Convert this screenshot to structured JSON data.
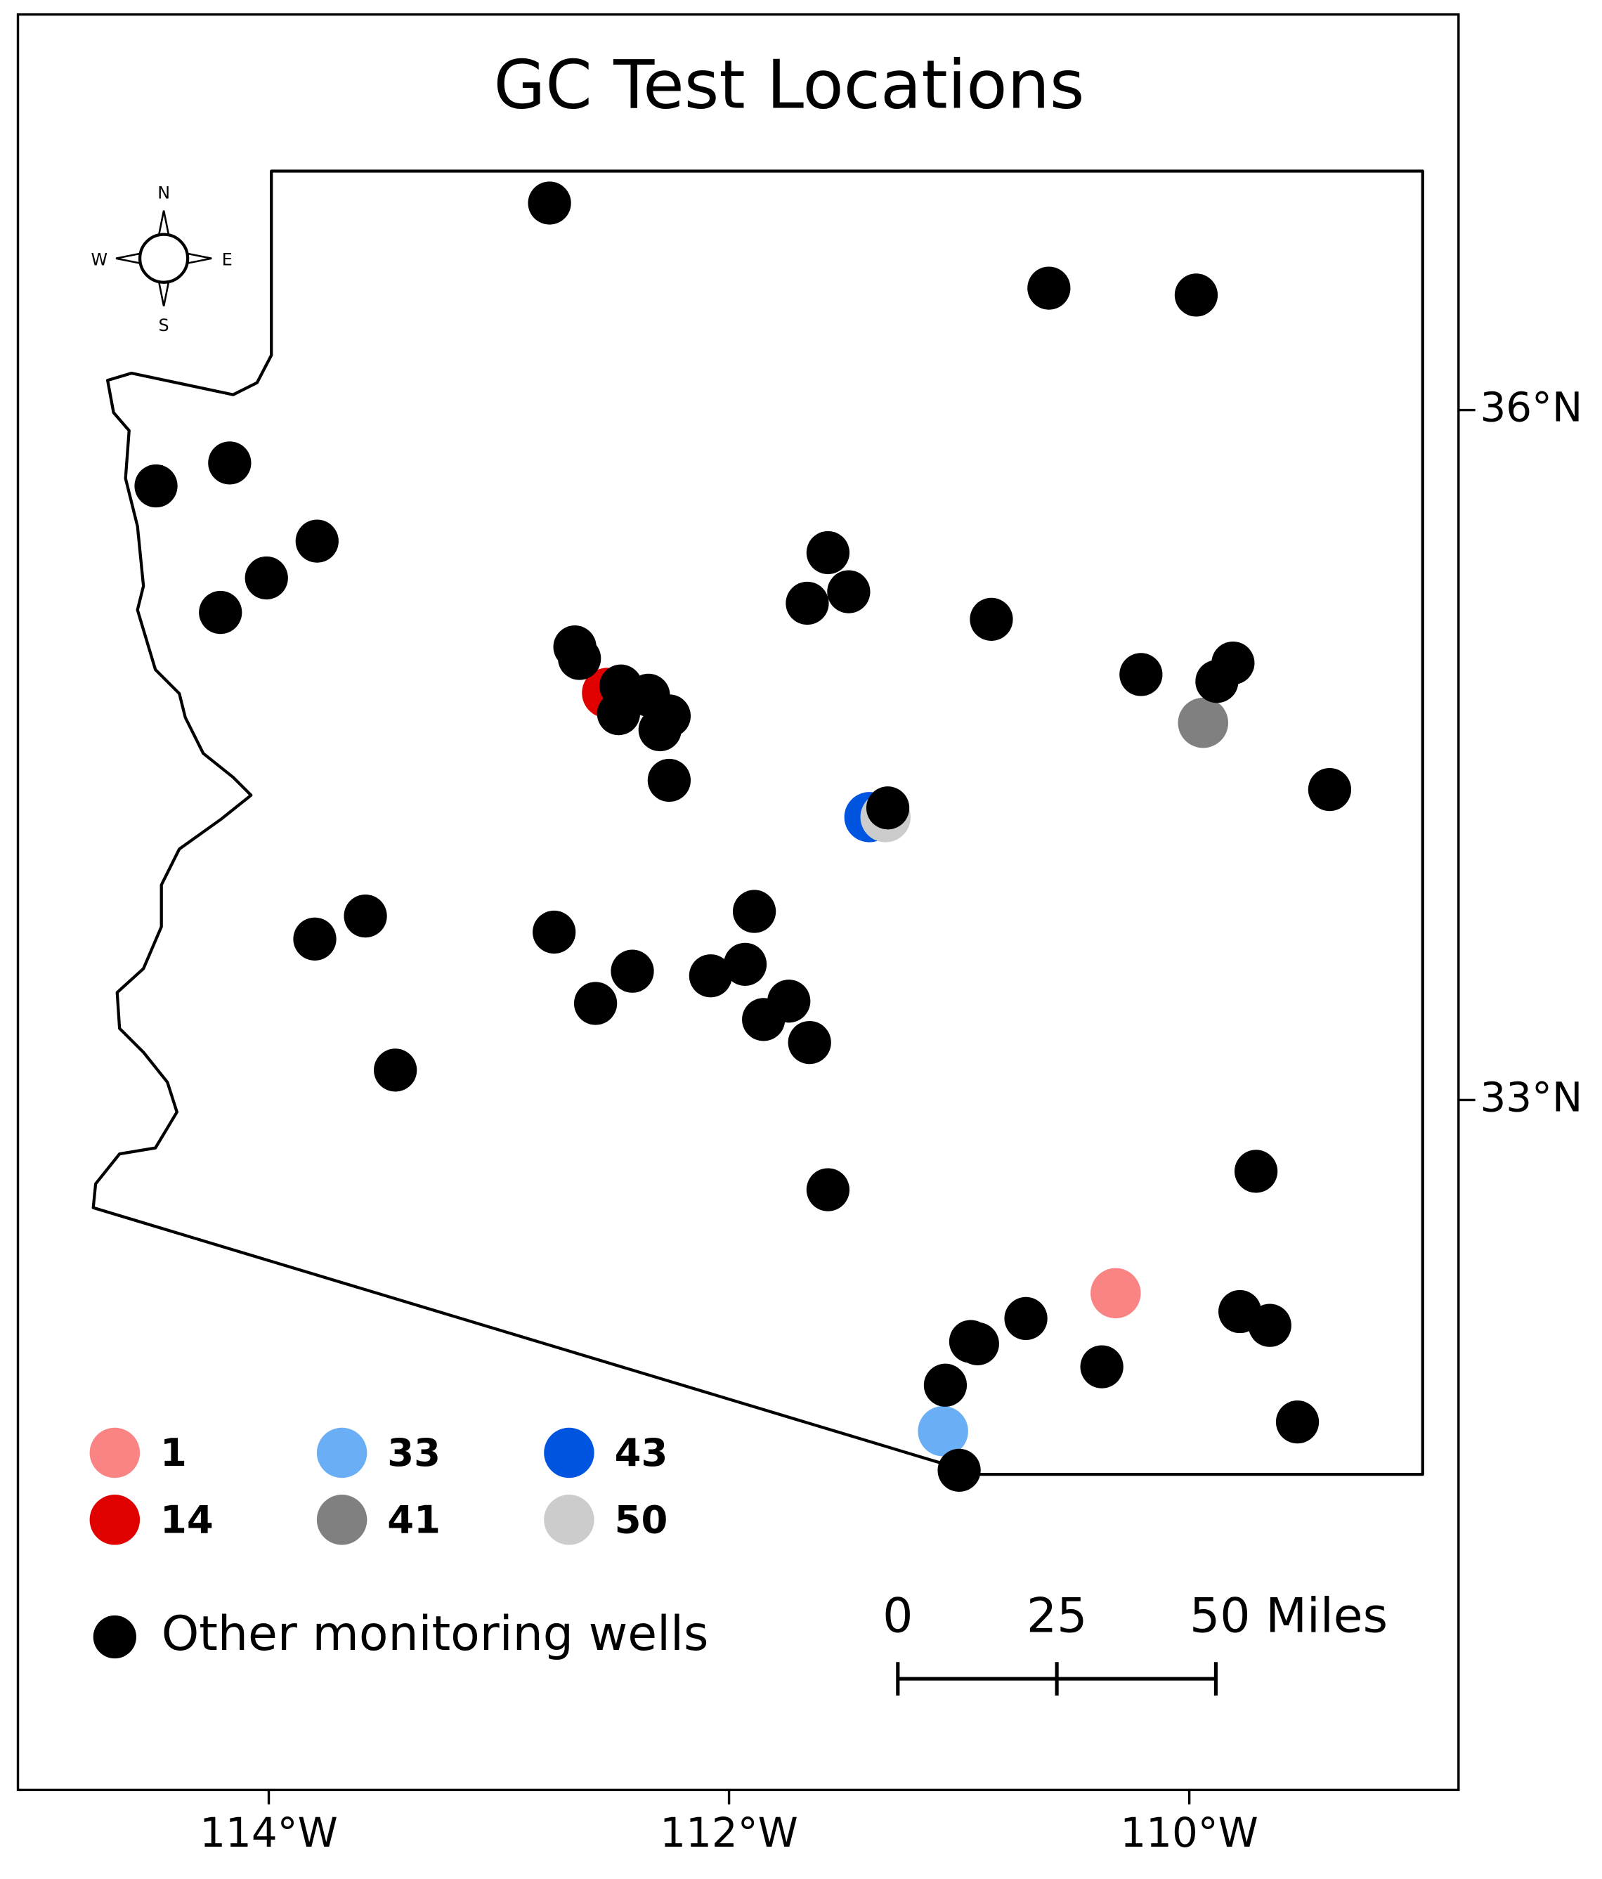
{
  "map": {
    "title": "GC Test Locations",
    "xlim": [
      -115.09,
      -108.83
    ],
    "ylim": [
      30.0,
      37.72
    ],
    "xticks": [
      {
        "value": -114,
        "label": "114°W"
      },
      {
        "value": -112,
        "label": "112°W"
      },
      {
        "value": -110,
        "label": "110°W"
      }
    ],
    "yticks": [
      {
        "value": 36,
        "label": "36°N"
      },
      {
        "value": 33,
        "label": "33°N"
      }
    ],
    "compass": [
      "N",
      "E",
      "S",
      "W"
    ],
    "tests": [
      {
        "name": "1",
        "color": "#fa8484",
        "lon": -110.32,
        "lat": 32.16
      },
      {
        "name": "14",
        "color": "#e00000",
        "lon": -112.53,
        "lat": 34.77
      },
      {
        "name": "33",
        "color": "#6aaff5",
        "lon": -111.07,
        "lat": 31.56
      },
      {
        "name": "41",
        "color": "#808080",
        "lon": -109.94,
        "lat": 34.64
      },
      {
        "name": "43",
        "color": "#0055e0",
        "lon": -111.39,
        "lat": 34.23
      },
      {
        "name": "50",
        "color": "#cccccc",
        "lon": -111.32,
        "lat": 34.23
      }
    ],
    "wells_name": "Other monitoring wells",
    "wells_color": "#000000",
    "wells": [
      {
        "lon": -112.78,
        "lat": 36.9
      },
      {
        "lon": -110.61,
        "lat": 36.53
      },
      {
        "lon": -109.97,
        "lat": 36.5
      },
      {
        "lon": -114.49,
        "lat": 35.67
      },
      {
        "lon": -114.17,
        "lat": 35.77
      },
      {
        "lon": -113.79,
        "lat": 35.43
      },
      {
        "lon": -114.01,
        "lat": 35.27
      },
      {
        "lon": -114.21,
        "lat": 35.12
      },
      {
        "lon": -111.57,
        "lat": 35.38
      },
      {
        "lon": -111.48,
        "lat": 35.21
      },
      {
        "lon": -111.66,
        "lat": 35.16
      },
      {
        "lon": -110.86,
        "lat": 35.09
      },
      {
        "lon": -112.67,
        "lat": 34.97
      },
      {
        "lon": -112.65,
        "lat": 34.92
      },
      {
        "lon": -112.47,
        "lat": 34.8
      },
      {
        "lon": -112.35,
        "lat": 34.76
      },
      {
        "lon": -112.48,
        "lat": 34.68
      },
      {
        "lon": -112.26,
        "lat": 34.67
      },
      {
        "lon": -112.3,
        "lat": 34.61
      },
      {
        "lon": -112.26,
        "lat": 34.39
      },
      {
        "lon": -110.21,
        "lat": 34.85
      },
      {
        "lon": -109.81,
        "lat": 34.9
      },
      {
        "lon": -109.88,
        "lat": 34.82
      },
      {
        "lon": -109.39,
        "lat": 34.35
      },
      {
        "lon": -111.31,
        "lat": 34.27
      },
      {
        "lon": -113.8,
        "lat": 33.7
      },
      {
        "lon": -113.58,
        "lat": 33.8
      },
      {
        "lon": -112.76,
        "lat": 33.73
      },
      {
        "lon": -112.42,
        "lat": 33.56
      },
      {
        "lon": -112.58,
        "lat": 33.42
      },
      {
        "lon": -111.89,
        "lat": 33.82
      },
      {
        "lon": -112.08,
        "lat": 33.54
      },
      {
        "lon": -111.93,
        "lat": 33.59
      },
      {
        "lon": -111.74,
        "lat": 33.43
      },
      {
        "lon": -111.85,
        "lat": 33.35
      },
      {
        "lon": -111.65,
        "lat": 33.25
      },
      {
        "lon": -113.45,
        "lat": 33.13
      },
      {
        "lon": -111.57,
        "lat": 32.61
      },
      {
        "lon": -109.71,
        "lat": 32.69
      },
      {
        "lon": -110.71,
        "lat": 32.05
      },
      {
        "lon": -110.95,
        "lat": 31.95
      },
      {
        "lon": -110.92,
        "lat": 31.94
      },
      {
        "lon": -109.78,
        "lat": 32.08
      },
      {
        "lon": -109.65,
        "lat": 32.02
      },
      {
        "lon": -110.38,
        "lat": 31.84
      },
      {
        "lon": -111.06,
        "lat": 31.76
      },
      {
        "lon": -109.53,
        "lat": 31.6
      },
      {
        "lon": -111.0,
        "lat": 31.39
      }
    ],
    "scale_bar": [
      {
        "value": 0,
        "label": "0"
      },
      {
        "value": 25,
        "label": "25"
      },
      {
        "value": 50,
        "label": "50 Miles"
      }
    ]
  }
}
